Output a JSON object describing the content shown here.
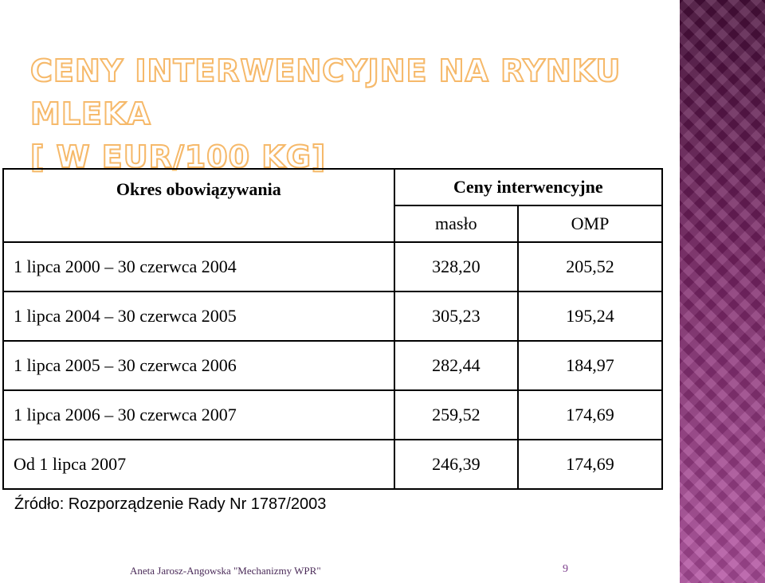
{
  "title": {
    "line1": "CENY INTERWENCYJNE NA RYNKU MLEKA",
    "line2": "[ W EUR/100 KG]"
  },
  "table": {
    "header_period": "Okres obowiązywania",
    "header_prices": "Ceny interwencyjne",
    "sub_maslo": "masło",
    "sub_omp": "OMP",
    "rows": [
      {
        "period": "1 lipca 2000 – 30 czerwca 2004",
        "maslo": "328,20",
        "omp": "205,52"
      },
      {
        "period": "1 lipca 2004 – 30 czerwca 2005",
        "maslo": "305,23",
        "omp": "195,24"
      },
      {
        "period": "1 lipca 2005 – 30 czerwca 2006",
        "maslo": "282,44",
        "omp": "184,97"
      },
      {
        "period": "1 lipca 2006 – 30 czerwca 2007",
        "maslo": "259,52",
        "omp": "174,69"
      },
      {
        "period": "Od 1 lipca 2007",
        "maslo": "246,39",
        "omp": "174,69"
      }
    ]
  },
  "source": "Źródło: Rozporządzenie Rady Nr 1787/2003",
  "footer": {
    "author": "Aneta Jarosz-Angowska \"Mechanizmy WPR\"",
    "page": "9"
  },
  "colors": {
    "title_outline": "#f6b96a",
    "band": "#8a2d73"
  }
}
